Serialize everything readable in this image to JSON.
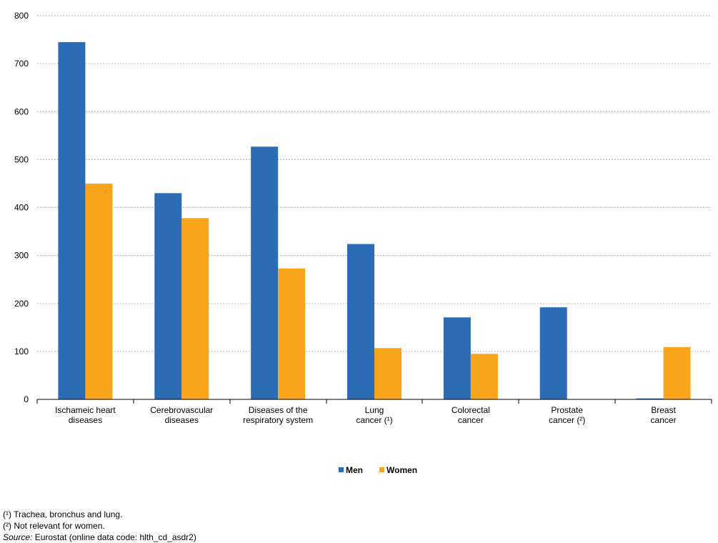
{
  "chart_data": {
    "type": "bar",
    "title": "",
    "xlabel": "",
    "ylabel": "",
    "ylim": [
      0,
      800
    ],
    "yticks": [
      "0",
      "100",
      "200",
      "300",
      "400",
      "500",
      "600",
      "700",
      "800"
    ],
    "grid": true,
    "legend_position": "bottom-center",
    "categories": [
      [
        "Ischameic heart",
        "diseases"
      ],
      [
        "Cerebrovascular",
        "diseases"
      ],
      [
        "Diseases of the",
        "respiratory system"
      ],
      [
        "Lung",
        "cancer (¹)"
      ],
      [
        "Colorectal",
        "cancer"
      ],
      [
        "Prostate",
        "cancer (²)"
      ],
      [
        "Breast",
        "cancer"
      ]
    ],
    "series": [
      {
        "name": "Men",
        "color": "#2b6cb5",
        "values": [
          745,
          430,
          527,
          324,
          171,
          192,
          2
        ]
      },
      {
        "name": "Women",
        "color": "#f8a51c",
        "values": [
          450,
          378,
          273,
          107,
          95,
          null,
          109
        ]
      }
    ]
  },
  "footnotes": {
    "note1": "(¹) Trachea, bronchus and lung.",
    "note2": "(²) Not relevant for women.",
    "source_label": "Source:",
    "source_text": " Eurostat (online data code: hlth_cd_asdr2)"
  }
}
